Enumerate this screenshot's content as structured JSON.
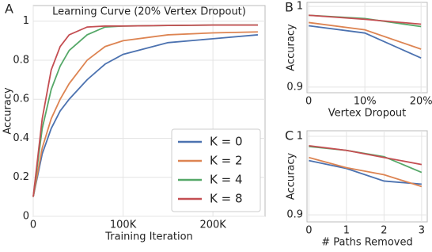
{
  "chart_data": [
    {
      "type": "line",
      "panel_label": "A",
      "title": "Learning Curve (20% Vertex Dropout)",
      "x_label": "Training Iteration",
      "y_label": "Accuracy",
      "x": [
        0,
        10000,
        20000,
        30000,
        40000,
        60000,
        80000,
        100000,
        150000,
        200000,
        250000
      ],
      "series": [
        {
          "name": "K = 0",
          "color": "#4c72b0",
          "values": [
            0.1,
            0.32,
            0.45,
            0.54,
            0.6,
            0.7,
            0.78,
            0.83,
            0.89,
            0.91,
            0.93
          ]
        },
        {
          "name": "K = 2",
          "color": "#dd8452",
          "values": [
            0.1,
            0.35,
            0.5,
            0.6,
            0.68,
            0.8,
            0.87,
            0.9,
            0.93,
            0.94,
            0.945
          ]
        },
        {
          "name": "K = 4",
          "color": "#55a868",
          "values": [
            0.1,
            0.45,
            0.65,
            0.77,
            0.85,
            0.93,
            0.97,
            0.975,
            0.978,
            0.98,
            0.98
          ]
        },
        {
          "name": "K = 8",
          "color": "#c44e52",
          "values": [
            0.1,
            0.5,
            0.75,
            0.87,
            0.93,
            0.97,
            0.975,
            0.975,
            0.978,
            0.98,
            0.98
          ]
        }
      ],
      "xlim": [
        0,
        258000
      ],
      "ylim": [
        0,
        1.08
      ],
      "xticks": [
        0,
        {
          "value": 100000,
          "label": "100K"
        },
        {
          "value": 200000,
          "label": "200K"
        }
      ],
      "yticks": [
        0,
        0.2,
        0.4,
        0.6,
        0.8,
        1
      ],
      "grid": true,
      "legend": "lower right"
    },
    {
      "type": "line",
      "panel_label": "B",
      "x_label": "Vertex Dropout",
      "y_label": "Accuracy",
      "x": [
        0,
        10,
        20
      ],
      "series": [
        {
          "name": "K = 0",
          "color": "#4c72b0",
          "values": [
            0.976,
            0.967,
            0.936
          ]
        },
        {
          "name": "K = 2",
          "color": "#dd8452",
          "values": [
            0.98,
            0.971,
            0.947
          ]
        },
        {
          "name": "K = 4",
          "color": "#55a868",
          "values": [
            0.989,
            0.985,
            0.975
          ]
        },
        {
          "name": "K = 8",
          "color": "#c44e52",
          "values": [
            0.989,
            0.984,
            0.978
          ]
        }
      ],
      "xlim": [
        -0.3,
        21.1
      ],
      "ylim": [
        0.893,
        1.005
      ],
      "xticks": [
        0,
        {
          "value": 10,
          "label": "10%"
        },
        {
          "value": 20,
          "label": "20%"
        }
      ],
      "yticks": [
        0.9,
        1
      ],
      "grid": true
    },
    {
      "type": "line",
      "panel_label": "C",
      "x_label": "# Paths Removed",
      "y_label": "Accuracy",
      "x": [
        0,
        1,
        2,
        3
      ],
      "series": [
        {
          "name": "K = 0",
          "color": "#4c72b0",
          "values": [
            0.969,
            0.959,
            0.943,
            0.939
          ]
        },
        {
          "name": "K = 2",
          "color": "#dd8452",
          "values": [
            0.973,
            0.96,
            0.951,
            0.936
          ]
        },
        {
          "name": "K = 4",
          "color": "#55a868",
          "values": [
            0.987,
            0.982,
            0.974,
            0.954
          ]
        },
        {
          "name": "K = 8",
          "color": "#c44e52",
          "values": [
            0.988,
            0.982,
            0.973,
            0.964
          ]
        }
      ],
      "xlim": [
        -0.05,
        3.15
      ],
      "ylim": [
        0.891,
        1.007
      ],
      "xticks": [
        0,
        1,
        2,
        3
      ],
      "yticks": [
        0.9,
        1
      ],
      "grid": true
    }
  ]
}
